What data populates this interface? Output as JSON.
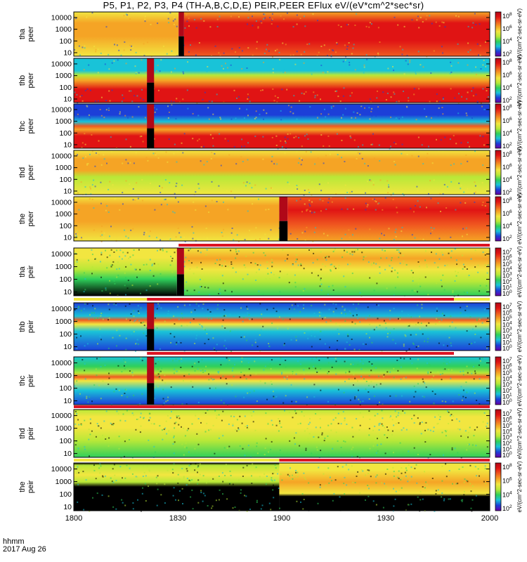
{
  "title": "P5, P1, P2, P3, P4 (TH-A,B,C,D,E) PEIR,PEER EFlux eV/(eV*cm^2*sec*sr)",
  "colors": {
    "black": "#000000",
    "blue": "#1c3fd8",
    "cyan": "#19c3d8",
    "green": "#2fd05a",
    "yellow_green": "#b8e838",
    "yellow": "#f2e640",
    "orange": "#f5a425",
    "red_orange": "#f05a20",
    "red": "#e01414",
    "dark_red": "#b00818",
    "flag_red": "#dc1423"
  },
  "footer": {
    "line1": "hhmm",
    "line2": "2017 Aug 26"
  },
  "chart_data": {
    "type": "heatmap",
    "x_ticks": [
      "1800",
      "1830",
      "1900",
      "1930",
      "2000"
    ],
    "x_range": [
      "18:00",
      "20:00"
    ],
    "panels": [
      {
        "label1": "tha",
        "label2": "peer",
        "y_ticks": [
          "10000",
          "1000",
          "100",
          "10"
        ],
        "ylim": [
          5,
          30000
        ],
        "scale": "log",
        "cbar_ticks": [
          "10^8",
          "10^6",
          "10^4",
          "10^2"
        ],
        "cbar_label": "eV/(cm^2-sec-sr-eV)",
        "pattern": "peer",
        "gap": [
          0.252,
          0.265
        ],
        "segments": [
          {
            "x": [
              0.0,
              0.252
            ],
            "bands": [
              [
                0.0,
                "yellow"
              ],
              [
                0.45,
                "orange"
              ],
              [
                0.75,
                "orange"
              ],
              [
                1.0,
                "yellow"
              ]
            ]
          },
          {
            "x": [
              0.265,
              1.0
            ],
            "bands": [
              [
                0.0,
                "red_orange"
              ],
              [
                0.35,
                "red"
              ],
              [
                0.75,
                "red"
              ],
              [
                1.0,
                "orange"
              ]
            ]
          }
        ]
      },
      {
        "label1": "thb",
        "label2": "peer",
        "y_ticks": [
          "10000",
          "1000",
          "100",
          "10"
        ],
        "ylim": [
          5,
          30000
        ],
        "scale": "log",
        "cbar_ticks": [
          "10^8",
          "10^6",
          "10^4",
          "10^2"
        ],
        "cbar_label": "eV/(cm^2-sec-sr-eV)",
        "pattern": "peer",
        "gap": [
          0.176,
          0.193
        ],
        "segments": [
          {
            "x": [
              0.0,
              1.0
            ],
            "bands": [
              [
                0.0,
                "red"
              ],
              [
                0.3,
                "red"
              ],
              [
                0.5,
                "orange"
              ],
              [
                0.62,
                "yellow_green"
              ],
              [
                0.72,
                "cyan"
              ],
              [
                1.0,
                "cyan"
              ]
            ]
          }
        ]
      },
      {
        "label1": "thc",
        "label2": "peer",
        "y_ticks": [
          "10000",
          "1000",
          "100",
          "10"
        ],
        "ylim": [
          5,
          30000
        ],
        "scale": "log",
        "cbar_ticks": [
          "10^8",
          "10^6",
          "10^4",
          "10^2"
        ],
        "cbar_label": "eV/(cm^2-sec-sr-eV)",
        "pattern": "peer",
        "gap": [
          0.176,
          0.193
        ],
        "segments": [
          {
            "x": [
              0.0,
              1.0
            ],
            "bands": [
              [
                0.0,
                "red"
              ],
              [
                0.28,
                "red"
              ],
              [
                0.42,
                "orange"
              ],
              [
                0.5,
                "red_orange"
              ],
              [
                0.6,
                "cyan"
              ],
              [
                0.75,
                "blue"
              ],
              [
                1.0,
                "blue"
              ]
            ]
          }
        ]
      },
      {
        "label1": "thd",
        "label2": "peer",
        "y_ticks": [
          "10000",
          "1000",
          "100",
          "10"
        ],
        "ylim": [
          5,
          30000
        ],
        "scale": "log",
        "cbar_ticks": [
          "10^8",
          "10^6",
          "10^4",
          "10^2"
        ],
        "cbar_label": "eV/(cm^2-sec-sr-eV)",
        "pattern": "peer",
        "gap": null,
        "segments": [
          {
            "x": [
              0.0,
              1.0
            ],
            "bands": [
              [
                0.0,
                "yellow"
              ],
              [
                0.4,
                "yellow_green"
              ],
              [
                0.55,
                "orange"
              ],
              [
                0.8,
                "orange"
              ],
              [
                1.0,
                "yellow"
              ]
            ]
          }
        ]
      },
      {
        "label1": "the",
        "label2": "peer",
        "y_ticks": [
          "10000",
          "1000",
          "100",
          "10"
        ],
        "ylim": [
          5,
          30000
        ],
        "scale": "log",
        "cbar_ticks": [
          "10^8",
          "10^6",
          "10^4",
          "10^2"
        ],
        "cbar_label": "eV/(cm^2-sec-sr-eV)",
        "pattern": "peer",
        "gap": [
          0.494,
          0.514
        ],
        "segments": [
          {
            "x": [
              0.0,
              0.494
            ],
            "bands": [
              [
                0.0,
                "yellow"
              ],
              [
                0.45,
                "orange"
              ],
              [
                0.8,
                "orange"
              ],
              [
                1.0,
                "yellow"
              ]
            ]
          },
          {
            "x": [
              0.514,
              1.0
            ],
            "bands": [
              [
                0.0,
                "orange"
              ],
              [
                0.35,
                "red_orange"
              ],
              [
                0.7,
                "red"
              ],
              [
                1.0,
                "red_orange"
              ]
            ]
          }
        ]
      },
      {
        "label1": "tha",
        "label2": "peir",
        "y_ticks": [
          "10000",
          "1000",
          "100",
          "10"
        ],
        "ylim": [
          5,
          30000
        ],
        "scale": "log",
        "cbar_ticks": [
          "10^7",
          "10^6",
          "10^5",
          "10^4",
          "10^3",
          "10^2",
          "10^1",
          "10^0"
        ],
        "cbar_label": "eV/(cm^2-sec-sr-eV)",
        "pattern": "peir",
        "gap": [
          0.248,
          0.265
        ],
        "segments": [
          {
            "x": [
              0.0,
              0.248
            ],
            "bands": [
              [
                0.0,
                "black"
              ],
              [
                0.35,
                "green"
              ],
              [
                0.55,
                "yellow_green"
              ],
              [
                0.8,
                "yellow"
              ],
              [
                1.0,
                "yellow"
              ]
            ]
          },
          {
            "x": [
              0.265,
              1.0
            ],
            "bands": [
              [
                0.0,
                "green"
              ],
              [
                0.3,
                "yellow_green"
              ],
              [
                0.55,
                "yellow"
              ],
              [
                0.78,
                "orange"
              ],
              [
                1.0,
                "yellow"
              ]
            ]
          }
        ]
      },
      {
        "label1": "thb",
        "label2": "peir",
        "y_ticks": [
          "10000",
          "1000",
          "100",
          "10"
        ],
        "ylim": [
          5,
          30000
        ],
        "scale": "log",
        "cbar_ticks": [
          "10^7",
          "10^6",
          "10^5",
          "10^4",
          "10^3",
          "10^2",
          "10^1",
          "10^0"
        ],
        "cbar_label": "eV/(cm^2-sec-sr-eV)",
        "pattern": "peir",
        "gap": [
          0.176,
          0.193
        ],
        "segments": [
          {
            "x": [
              0.0,
              1.0
            ],
            "bands": [
              [
                0.0,
                "blue"
              ],
              [
                0.4,
                "cyan"
              ],
              [
                0.55,
                "yellow"
              ],
              [
                0.64,
                "red_orange"
              ],
              [
                0.72,
                "cyan"
              ],
              [
                1.0,
                "blue"
              ]
            ]
          }
        ]
      },
      {
        "label1": "thc",
        "label2": "peir",
        "y_ticks": [
          "10000",
          "1000",
          "100",
          "10"
        ],
        "ylim": [
          5,
          30000
        ],
        "scale": "log",
        "cbar_ticks": [
          "10^7",
          "10^6",
          "10^5",
          "10^4",
          "10^3",
          "10^2",
          "10^1",
          "10^0"
        ],
        "cbar_label": "eV/(cm^2-sec-sr-eV)",
        "pattern": "peir",
        "gap": [
          0.176,
          0.193
        ],
        "segments": [
          {
            "x": [
              0.0,
              1.0
            ],
            "bands": [
              [
                0.0,
                "blue"
              ],
              [
                0.3,
                "cyan"
              ],
              [
                0.5,
                "yellow"
              ],
              [
                0.58,
                "red_orange"
              ],
              [
                0.66,
                "yellow_green"
              ],
              [
                0.8,
                "green"
              ],
              [
                1.0,
                "cyan"
              ]
            ]
          }
        ]
      },
      {
        "label1": "thd",
        "label2": "peir",
        "y_ticks": [
          "10000",
          "1000",
          "100",
          "10"
        ],
        "ylim": [
          5,
          30000
        ],
        "scale": "log",
        "cbar_ticks": [
          "10^7",
          "10^6",
          "10^5",
          "10^4",
          "10^3",
          "10^2",
          "10^1",
          "10^0"
        ],
        "cbar_label": "eV/(cm^2-sec-sr-eV)",
        "pattern": "peir",
        "gap": null,
        "segments": [
          {
            "x": [
              0.0,
              1.0
            ],
            "bands": [
              [
                0.0,
                "green"
              ],
              [
                0.35,
                "yellow_green"
              ],
              [
                0.62,
                "yellow"
              ],
              [
                0.85,
                "yellow"
              ],
              [
                1.0,
                "yellow_green"
              ]
            ]
          }
        ]
      },
      {
        "label1": "the",
        "label2": "peir",
        "y_ticks": [
          "10000",
          "1000",
          "100",
          "10"
        ],
        "ylim": [
          5,
          30000
        ],
        "scale": "log",
        "cbar_ticks": [
          "10^8",
          "10^6",
          "10^4",
          "10^2"
        ],
        "cbar_label": "eV/(cm^2-sec-sr-eV)",
        "pattern": "peir",
        "gap": null,
        "segments": [
          {
            "x": [
              0.0,
              0.494
            ],
            "bands": [
              [
                0.0,
                "black"
              ],
              [
                0.5,
                "black"
              ],
              [
                0.6,
                "yellow_green"
              ],
              [
                0.75,
                "yellow"
              ],
              [
                0.95,
                "yellow_green"
              ],
              [
                1.0,
                "black"
              ]
            ]
          },
          {
            "x": [
              0.494,
              1.0
            ],
            "bands": [
              [
                0.0,
                "black"
              ],
              [
                0.3,
                "black"
              ],
              [
                0.36,
                "yellow"
              ],
              [
                0.6,
                "orange"
              ],
              [
                0.85,
                "yellow"
              ],
              [
                1.0,
                "yellow"
              ]
            ]
          }
        ]
      }
    ],
    "mode_flags": [
      {
        "after_panel": 5,
        "segments": [
          [
            0.0,
            0.252,
            "white"
          ],
          [
            0.252,
            1.0,
            "flag_red"
          ]
        ]
      },
      {
        "after_panel": 6,
        "segments": [
          [
            0.0,
            0.176,
            "yellow"
          ],
          [
            0.176,
            0.914,
            "flag_red"
          ],
          [
            0.914,
            1.0,
            "yellow"
          ]
        ]
      },
      {
        "after_panel": 7,
        "segments": [
          [
            0.0,
            0.176,
            "white"
          ],
          [
            0.176,
            0.914,
            "flag_red"
          ],
          [
            0.914,
            1.0,
            "white"
          ]
        ]
      },
      {
        "after_panel": 8,
        "segments": [
          [
            0.0,
            1.0,
            "flag_red"
          ]
        ]
      },
      {
        "after_panel": 9,
        "segments": [
          [
            0.0,
            0.494,
            "yellow"
          ],
          [
            0.494,
            1.0,
            "flag_red"
          ]
        ]
      }
    ]
  }
}
